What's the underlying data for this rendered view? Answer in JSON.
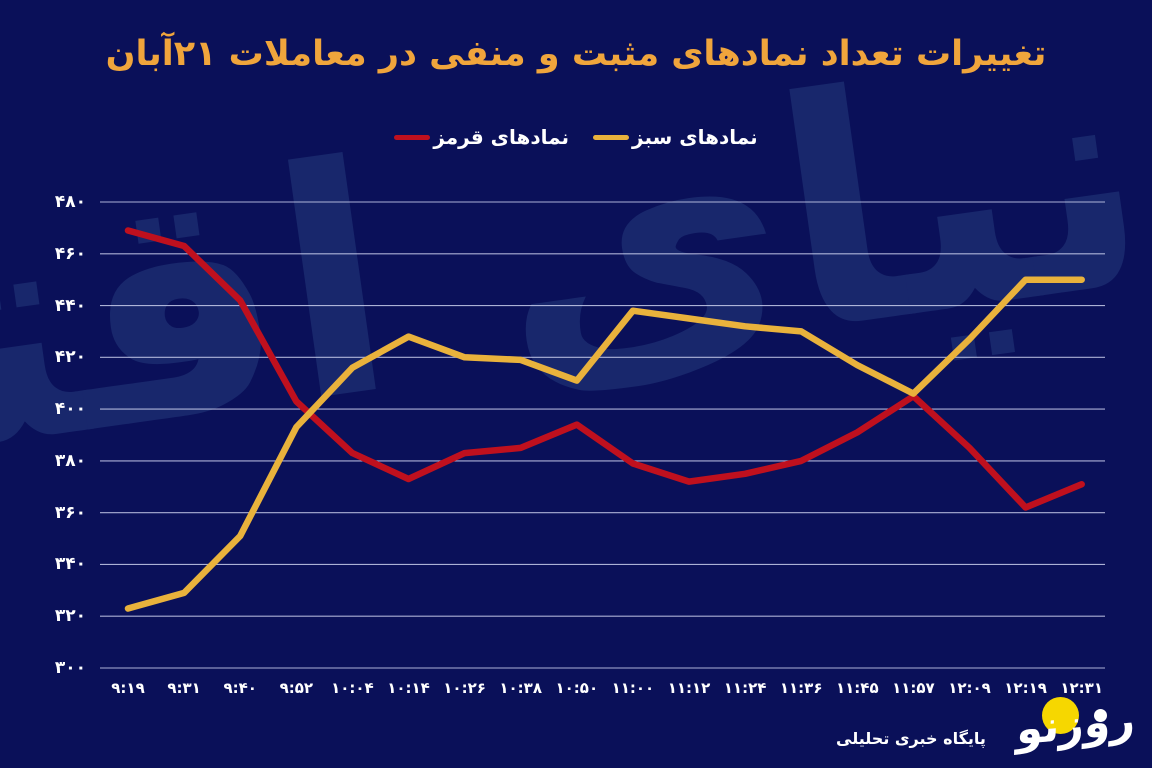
{
  "title": {
    "text": "تغییرات تعداد نمادهای مثبت و منفی در معاملات ۲۱آبان"
  },
  "legend": [
    {
      "label": "نمادهای سبز",
      "color": "#e9b23c"
    },
    {
      "label": "نمادهای قرمز",
      "color": "#bf101e"
    }
  ],
  "footer": {
    "tagline": "پایگاه خبری تحلیلی",
    "logo_text": "روزنو"
  },
  "watermark_text": "دنیای اقتصاد",
  "colors": {
    "background": "#0a1059",
    "grid": "#d4daf5",
    "tick_text": "#ffffff",
    "watermark": "#18276c",
    "title_gold": "#f0a53c",
    "logo_circle": "#f6d700"
  },
  "chart_data": {
    "type": "line",
    "title": "تغییرات تعداد نمادهای مثبت و منفی در معاملات ۲۱آبان",
    "legend_position": "top-center",
    "grid": "horizontal-only",
    "ylim": [
      300,
      480
    ],
    "y_ticks": [
      480,
      460,
      440,
      420,
      400,
      380,
      360,
      340,
      320,
      300
    ],
    "y_tick_labels": [
      "۴۸۰",
      "۴۶۰",
      "۴۴۰",
      "۴۲۰",
      "۴۰۰",
      "۳۸۰",
      "۳۶۰",
      "۳۴۰",
      "۳۲۰",
      "۳۰۰"
    ],
    "x_tick_labels": [
      "۹:۱۹",
      "۹:۳۱",
      "۹:۴۰",
      "۹:۵۲",
      "۱۰:۰۴",
      "۱۰:۱۴",
      "۱۰:۲۶",
      "۱۰:۳۸",
      "۱۰:۵۰",
      "۱۱:۰۰",
      "۱۱:۱۲",
      "۱۱:۲۴",
      "۱۱:۳۶",
      "۱۱:۴۵",
      "۱۱:۵۷",
      "۱۲:۰۹",
      "۱۲:۱۹",
      "۱۲:۳۱"
    ],
    "x_tick_labels_latin": [
      "9:19",
      "9:31",
      "9:40",
      "9:52",
      "10:04",
      "10:14",
      "10:26",
      "10:38",
      "10:50",
      "11:00",
      "11:12",
      "11:24",
      "11:36",
      "11:45",
      "11:57",
      "12:09",
      "12:19",
      "12:31"
    ],
    "series": [
      {
        "name": "نمادهای سبز",
        "color": "#e9b23c",
        "values": [
          323,
          329,
          351,
          393,
          416,
          428,
          420,
          419,
          411,
          438,
          435,
          432,
          430,
          417,
          406,
          427,
          450,
          450
        ]
      },
      {
        "name": "نمادهای قرمز",
        "color": "#bf101e",
        "values": [
          469,
          463,
          442,
          403,
          383,
          373,
          383,
          385,
          394,
          379,
          372,
          375,
          380,
          391,
          405,
          385,
          362,
          371
        ]
      }
    ]
  }
}
